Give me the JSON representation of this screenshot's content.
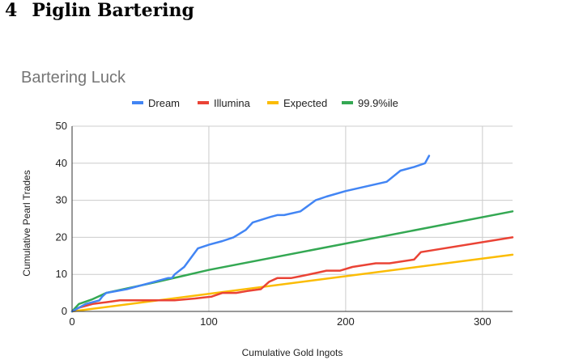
{
  "section": {
    "number": "4",
    "title": "Piglin Bartering"
  },
  "chart_data": {
    "type": "line",
    "title": "Bartering Luck",
    "xlabel": "Cumulative Gold Ingots",
    "ylabel": "Cumulative Pearl Trades",
    "xlim": [
      0,
      322
    ],
    "ylim": [
      0,
      50
    ],
    "x_ticks": [
      0,
      100,
      200,
      300
    ],
    "y_ticks": [
      0,
      10,
      20,
      30,
      40,
      50
    ],
    "grid": true,
    "legend": "top",
    "series": [
      {
        "name": "Dream",
        "color": "#4285F4",
        "points": [
          [
            0,
            0
          ],
          [
            5,
            1
          ],
          [
            10,
            2
          ],
          [
            15,
            2.5
          ],
          [
            20,
            3
          ],
          [
            22,
            4
          ],
          [
            25,
            5
          ],
          [
            40,
            6
          ],
          [
            60,
            8
          ],
          [
            70,
            9
          ],
          [
            73,
            9
          ],
          [
            75,
            10
          ],
          [
            82,
            12
          ],
          [
            92,
            17
          ],
          [
            100,
            18
          ],
          [
            110,
            19
          ],
          [
            118,
            20
          ],
          [
            127,
            22
          ],
          [
            132,
            24
          ],
          [
            145,
            25.5
          ],
          [
            150,
            26
          ],
          [
            155,
            26
          ],
          [
            167,
            27
          ],
          [
            178,
            30
          ],
          [
            186,
            31
          ],
          [
            200,
            32.5
          ],
          [
            230,
            35
          ],
          [
            240,
            38
          ],
          [
            250,
            39
          ],
          [
            258,
            40
          ],
          [
            261,
            42
          ]
        ]
      },
      {
        "name": "Illumina",
        "color": "#EA4335",
        "points": [
          [
            0,
            0
          ],
          [
            5,
            1
          ],
          [
            15,
            2
          ],
          [
            25,
            2.5
          ],
          [
            35,
            3
          ],
          [
            50,
            3
          ],
          [
            65,
            3
          ],
          [
            75,
            3
          ],
          [
            90,
            3.5
          ],
          [
            102,
            4
          ],
          [
            110,
            5
          ],
          [
            120,
            5
          ],
          [
            128,
            5.5
          ],
          [
            138,
            6
          ],
          [
            144,
            8
          ],
          [
            150,
            9
          ],
          [
            160,
            9
          ],
          [
            167,
            9.5
          ],
          [
            180,
            10.5
          ],
          [
            186,
            11
          ],
          [
            196,
            11
          ],
          [
            205,
            12
          ],
          [
            222,
            13
          ],
          [
            232,
            13
          ],
          [
            250,
            14
          ],
          [
            255,
            16
          ],
          [
            322,
            20
          ]
        ]
      },
      {
        "name": "Expected",
        "color": "#FBBC04",
        "points": [
          [
            0,
            0
          ],
          [
            322,
            15.3
          ]
        ]
      },
      {
        "name": "99.9%ile",
        "color": "#34A853",
        "points": [
          [
            0,
            0
          ],
          [
            5,
            2
          ],
          [
            15,
            3.3
          ],
          [
            25,
            5
          ],
          [
            40,
            6.2
          ],
          [
            60,
            7.8
          ],
          [
            80,
            9.5
          ],
          [
            100,
            11.2
          ],
          [
            322,
            27
          ]
        ]
      }
    ]
  }
}
